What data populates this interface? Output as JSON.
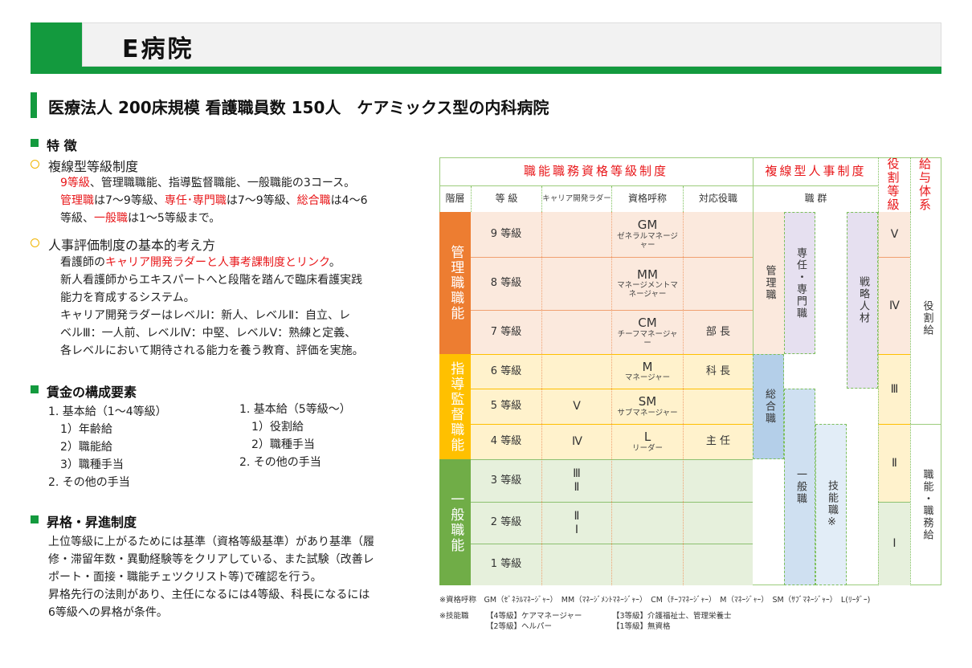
{
  "header": {
    "title": "E病院"
  },
  "subtitle": "医療法人 200床規模 看護職員数 150人　ケアミックス型の内科病院",
  "features": {
    "heading": "特 徴",
    "item1": {
      "title": "複線型等級制度",
      "l1a": "9等級",
      "l1b": "、管理職職能、指導監督職能、一般職能の3コース。",
      "l2a": "管理職",
      "l2b": "は7～9等級、",
      "l2c": "専任･専門職",
      "l2d": "は7～9等級、",
      "l2e": "総合職",
      "l2f": "は4～6",
      "l3a": "等級、",
      "l3b": "一般職",
      "l3c": "は1～5等級まで。"
    },
    "item2": {
      "title": "人事評価制度の基本的考え方",
      "l1a": "看護師の",
      "l1b": "キャリア開発ラダーと人事考課制度とリンク",
      "l1c": "。",
      "l2": "新人看護師からエキスパートへと段階を踏んで臨床看護実践",
      "l3": "能力を育成するシステム。",
      "l4": "キャリア開発ラダーはレベルⅠ：新人、レベルⅡ：自立、レ",
      "l5": "ベルⅢ：一人前、レベルⅣ：中堅、レベルⅤ：熟練と定義、",
      "l6": "各レベルにおいて期待される能力を養う教育、評価を実施。"
    }
  },
  "wages": {
    "heading": "賃金の構成要素",
    "left": [
      "1.  基本給（1～4等級）",
      "1）年齢給",
      "2）職能給",
      "3）職種手当",
      "2.  その他の手当"
    ],
    "right": [
      "1.  基本給（5等級～）",
      "1）役割給",
      "2）職種手当",
      "2.  その他の手当"
    ]
  },
  "promotion": {
    "heading": "昇格・昇進制度",
    "lines": [
      "上位等級に上がるためには基準（資格等級基準）があり基準（履",
      "修・滞留年数・異動経験等をクリアしている、また試験（改善レ",
      "ポート・面接・職能チェツクリスト等)で確認を行う。",
      "昇格先行の法則があり、主任になるには4等級、科長になるには",
      "6等級への昇格が条件。"
    ]
  },
  "table": {
    "top_headers": {
      "grade_system": "職能職務資格等級制度",
      "multi_track": "複線型人事制度",
      "role_grade": "役割等級",
      "pay": "給与体系"
    },
    "col_headers": {
      "tier": "階層",
      "grade": "等 級",
      "ladder": "キャリア開発ラダー",
      "title": "資格呼称",
      "position": "対応役職",
      "job_group": "職 群"
    },
    "tiers": [
      "管理職職能",
      "指導監督職能",
      "一般職能"
    ],
    "rows": [
      {
        "grade": "9 等級",
        "ladder": "",
        "abbr": "GM",
        "name": "ゼネラルマネージャー",
        "position": ""
      },
      {
        "grade": "8 等級",
        "ladder": "",
        "abbr": "MM",
        "name": "マネージメントマネージャー",
        "position": ""
      },
      {
        "grade": "7 等級",
        "ladder": "",
        "abbr": "CM",
        "name": "チーフマネージャー",
        "position": "部 長"
      },
      {
        "grade": "6 等級",
        "ladder": "",
        "abbr": "M",
        "name": "マネージャー",
        "position": "科 長"
      },
      {
        "grade": "5 等級",
        "ladder": "Ⅴ",
        "abbr": "SM",
        "name": "サブマネージャー",
        "position": ""
      },
      {
        "grade": "4 等級",
        "ladder": "Ⅳ",
        "abbr": "L",
        "name": "リーダー",
        "position": "主 任"
      },
      {
        "grade": "3 等級",
        "ladder": "Ⅲ Ⅱ",
        "abbr": "",
        "name": "",
        "position": ""
      },
      {
        "grade": "2 等級",
        "ladder": "Ⅱ Ⅰ",
        "abbr": "",
        "name": "",
        "position": ""
      },
      {
        "grade": "1 等級",
        "ladder": "",
        "abbr": "",
        "name": "",
        "position": ""
      }
    ],
    "job_groups": {
      "management": "管理職",
      "specialist": "専任・専門職",
      "strategic": "戦略人材",
      "general_track": "総合職",
      "general": "一般職",
      "skilled": "技能職※"
    },
    "role_grades": [
      "Ⅴ",
      "Ⅳ",
      "Ⅲ",
      "Ⅱ",
      "Ⅰ"
    ],
    "pay": [
      "役割給",
      "職能・職務給"
    ]
  },
  "footnotes": {
    "titles": "※資格呼称　GM（ｾﾞﾈﾗﾙﾏﾈｰｼﾞｬｰ）　MM（ﾏﾈｰｼﾞﾒﾝﾄﾏﾈｰｼﾞｬｰ）　CM（ﾁｰﾌﾏﾈｰｼﾞｬｰ）　M（ﾏﾈｰｼﾞｬｰ）　SM（ｻﾌﾞﾏﾈｰｼﾞｬｰ）　L(ﾘｰﾀﾞｰ)",
    "skilled_label": "※技能職",
    "s4": "【4等級】ケアマネージャー",
    "s2": "【2等級】ヘルパー",
    "s3": "【3等級】介護福祉士、管理栄養士",
    "s1": "【1等級】無資格"
  },
  "colors": {
    "brand_green": "#139a3e",
    "accent_red": "#e8171a",
    "mgmt_orange": "#ed7d31",
    "supervisor_yellow": "#ffc000",
    "general_green": "#70ad47"
  }
}
